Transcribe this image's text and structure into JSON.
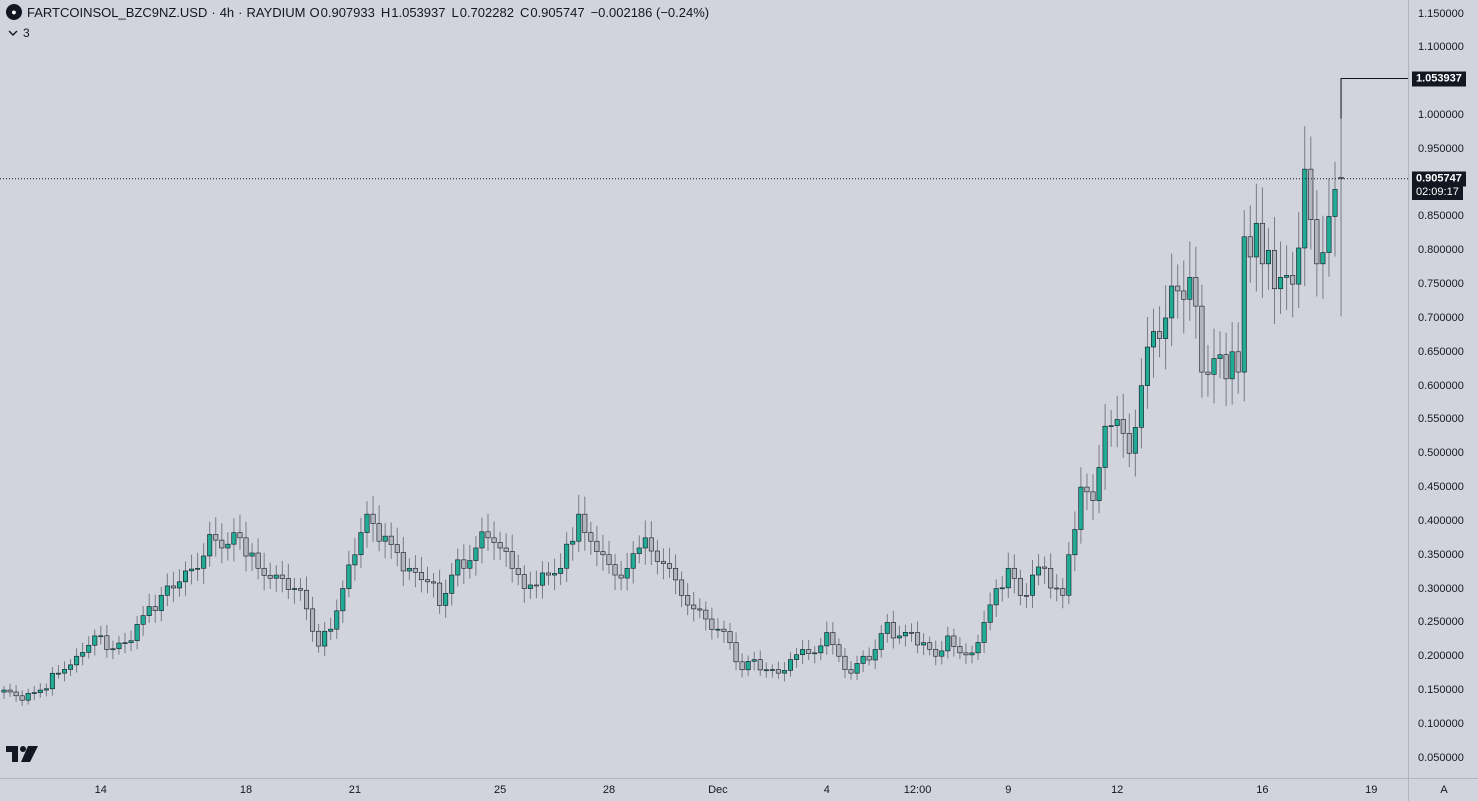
{
  "legend": {
    "symbol": "FARTCOINSOL_BZC9NZ.USD",
    "separator": "·",
    "interval": "4h",
    "exchange": "RAYDIUM",
    "open_label": "O",
    "open": "0.907933",
    "high_label": "H",
    "high": "1.053937",
    "low_label": "L",
    "low": "0.702282",
    "close_label": "C",
    "close": "0.905747",
    "change": "−0.002186 (−0.24%)"
  },
  "indicators": {
    "toggle_icon": "chevron-down-icon",
    "count": "3"
  },
  "price_axis": {
    "last_price": "0.905747",
    "countdown": "02:09:17",
    "high_marker": "1.053937",
    "auto_label": "A"
  },
  "colors": {
    "up": "#22ab94",
    "down": "#b2b5be",
    "wick": "#787b86",
    "background": "#d1d4dc",
    "tag": "#131722"
  },
  "chart_data": {
    "type": "candlestick",
    "ylim": [
      0.02,
      1.17
    ],
    "yticks": [
      0.05,
      0.1,
      0.15,
      0.2,
      0.25,
      0.3,
      0.35,
      0.4,
      0.45,
      0.5,
      0.55,
      0.6,
      0.65,
      0.7,
      0.75,
      0.8,
      0.85,
      0.9,
      0.95,
      1.0,
      1.05,
      1.1,
      1.15
    ],
    "ytick_labels": [
      "0.050000",
      "0.100000",
      "0.150000",
      "0.200000",
      "0.250000",
      "0.300000",
      "0.350000",
      "0.400000",
      "0.450000",
      "0.500000",
      "0.550000",
      "0.600000",
      "0.650000",
      "0.700000",
      "0.750000",
      "0.800000",
      "0.850000",
      "0.900000",
      "0.950000",
      "1.000000",
      "1.050000",
      "1.100000",
      "1.150000"
    ],
    "xticks": [
      {
        "label": "14",
        "bar": 16
      },
      {
        "label": "18",
        "bar": 40
      },
      {
        "label": "21",
        "bar": 58
      },
      {
        "label": "25",
        "bar": 82
      },
      {
        "label": "28",
        "bar": 100
      },
      {
        "label": "Dec",
        "bar": 118
      },
      {
        "label": "4",
        "bar": 136
      },
      {
        "label": "12:00",
        "bar": 151
      },
      {
        "label": "9",
        "bar": 166
      },
      {
        "label": "12",
        "bar": 184
      },
      {
        "label": "16",
        "bar": 208
      },
      {
        "label": "19",
        "bar": 226
      }
    ],
    "last_price": 0.905747,
    "high_marker": 1.053937,
    "anchors": [
      [
        0,
        0.15
      ],
      [
        3,
        0.135
      ],
      [
        6,
        0.15
      ],
      [
        9,
        0.175
      ],
      [
        12,
        0.2
      ],
      [
        15,
        0.23
      ],
      [
        17,
        0.21
      ],
      [
        20,
        0.22
      ],
      [
        23,
        0.26
      ],
      [
        26,
        0.29
      ],
      [
        29,
        0.31
      ],
      [
        32,
        0.33
      ],
      [
        34,
        0.38
      ],
      [
        36,
        0.36
      ],
      [
        39,
        0.375
      ],
      [
        42,
        0.33
      ],
      [
        45,
        0.32
      ],
      [
        48,
        0.3
      ],
      [
        50,
        0.27
      ],
      [
        52,
        0.215
      ],
      [
        54,
        0.24
      ],
      [
        56,
        0.3
      ],
      [
        58,
        0.35
      ],
      [
        60,
        0.41
      ],
      [
        62,
        0.37
      ],
      [
        64,
        0.365
      ],
      [
        67,
        0.33
      ],
      [
        70,
        0.31
      ],
      [
        72,
        0.275
      ],
      [
        74,
        0.32
      ],
      [
        76,
        0.33
      ],
      [
        78,
        0.36
      ],
      [
        80,
        0.375
      ],
      [
        82,
        0.36
      ],
      [
        84,
        0.33
      ],
      [
        86,
        0.3
      ],
      [
        88,
        0.305
      ],
      [
        90,
        0.32
      ],
      [
        92,
        0.33
      ],
      [
        94,
        0.37
      ],
      [
        95,
        0.41
      ],
      [
        97,
        0.37
      ],
      [
        99,
        0.35
      ],
      [
        101,
        0.32
      ],
      [
        103,
        0.33
      ],
      [
        105,
        0.36
      ],
      [
        106,
        0.375
      ],
      [
        108,
        0.34
      ],
      [
        110,
        0.33
      ],
      [
        112,
        0.29
      ],
      [
        114,
        0.27
      ],
      [
        116,
        0.255
      ],
      [
        118,
        0.24
      ],
      [
        120,
        0.22
      ],
      [
        122,
        0.18
      ],
      [
        124,
        0.195
      ],
      [
        126,
        0.18
      ],
      [
        128,
        0.175
      ],
      [
        130,
        0.195
      ],
      [
        132,
        0.21
      ],
      [
        134,
        0.205
      ],
      [
        136,
        0.235
      ],
      [
        138,
        0.2
      ],
      [
        140,
        0.175
      ],
      [
        142,
        0.2
      ],
      [
        144,
        0.21
      ],
      [
        146,
        0.25
      ],
      [
        148,
        0.23
      ],
      [
        150,
        0.235
      ],
      [
        152,
        0.22
      ],
      [
        154,
        0.2
      ],
      [
        156,
        0.23
      ],
      [
        158,
        0.205
      ],
      [
        160,
        0.205
      ],
      [
        162,
        0.25
      ],
      [
        164,
        0.3
      ],
      [
        166,
        0.33
      ],
      [
        168,
        0.29
      ],
      [
        170,
        0.32
      ],
      [
        172,
        0.33
      ],
      [
        174,
        0.3
      ],
      [
        175,
        0.29
      ],
      [
        176,
        0.35
      ],
      [
        178,
        0.45
      ],
      [
        180,
        0.43
      ],
      [
        182,
        0.54
      ],
      [
        184,
        0.55
      ],
      [
        186,
        0.5
      ],
      [
        188,
        0.6
      ],
      [
        190,
        0.68
      ],
      [
        192,
        0.7
      ],
      [
        194,
        0.74
      ],
      [
        196,
        0.76
      ],
      [
        198,
        0.62
      ],
      [
        200,
        0.64
      ],
      [
        202,
        0.61
      ],
      [
        203,
        0.65
      ],
      [
        204,
        0.62
      ],
      [
        205,
        0.82
      ],
      [
        207,
        0.84
      ],
      [
        208,
        0.78
      ],
      [
        209,
        0.8
      ],
      [
        211,
        0.76
      ],
      [
        213,
        0.75
      ],
      [
        215,
        0.92
      ],
      [
        217,
        0.78
      ],
      [
        219,
        0.85
      ],
      [
        220,
        0.89
      ],
      [
        221,
        0.906
      ]
    ]
  }
}
